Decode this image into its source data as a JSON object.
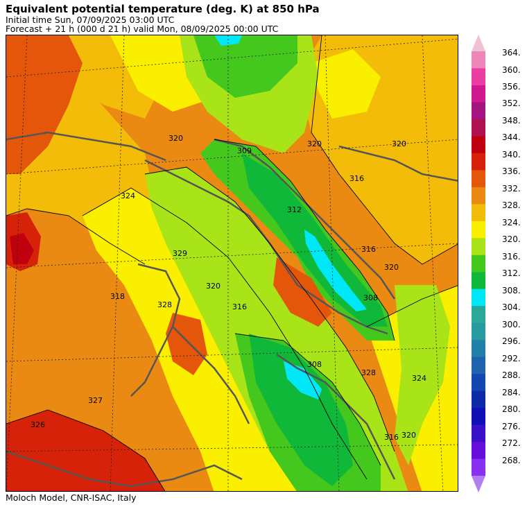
{
  "header": {
    "title": "Equivalent potential temperature (deg. K) at 850 hPa",
    "initial_time": "Initial time  Sun, 07/09/2025  03:00 UTC",
    "forecast": "Forecast  +  21 h  (000 d 21 h)  valid Mon, 08/09/2025 00:00 UTC"
  },
  "footer": {
    "credit": "Moloch Model, CNR-ISAC, Italy"
  },
  "colorbar": {
    "labels": [
      "364.",
      "360.",
      "356.",
      "352.",
      "348.",
      "344.",
      "340.",
      "336.",
      "332.",
      "328.",
      "324.",
      "320.",
      "316.",
      "312.",
      "308.",
      "304.",
      "300.",
      "296.",
      "292.",
      "288.",
      "284.",
      "280.",
      "276.",
      "272.",
      "268."
    ],
    "colors": [
      "#ee86b8",
      "#ea3ea0",
      "#d01890",
      "#a51380",
      "#b0104e",
      "#c0000e",
      "#d7220a",
      "#e4560a",
      "#eb8a12",
      "#f3bc08",
      "#fbef00",
      "#a8e418",
      "#44c81e",
      "#10b83a",
      "#00e8f8",
      "#2aa898",
      "#289aa2",
      "#2280a8",
      "#1e62b0",
      "#1446b2",
      "#0c2aa8",
      "#1010b4",
      "#3a10c8",
      "#6410da",
      "#8a30f0"
    ],
    "top_cap_color": "#f0c0d4",
    "bottom_cap_color": "#b080f0"
  },
  "map": {
    "contour_labels": [
      "309",
      "320",
      "312",
      "316",
      "320",
      "308",
      "320",
      "316",
      "324",
      "329",
      "320",
      "316",
      "320",
      "328",
      "327",
      "326",
      "308",
      "318",
      "328",
      "316",
      "320",
      "324"
    ]
  }
}
